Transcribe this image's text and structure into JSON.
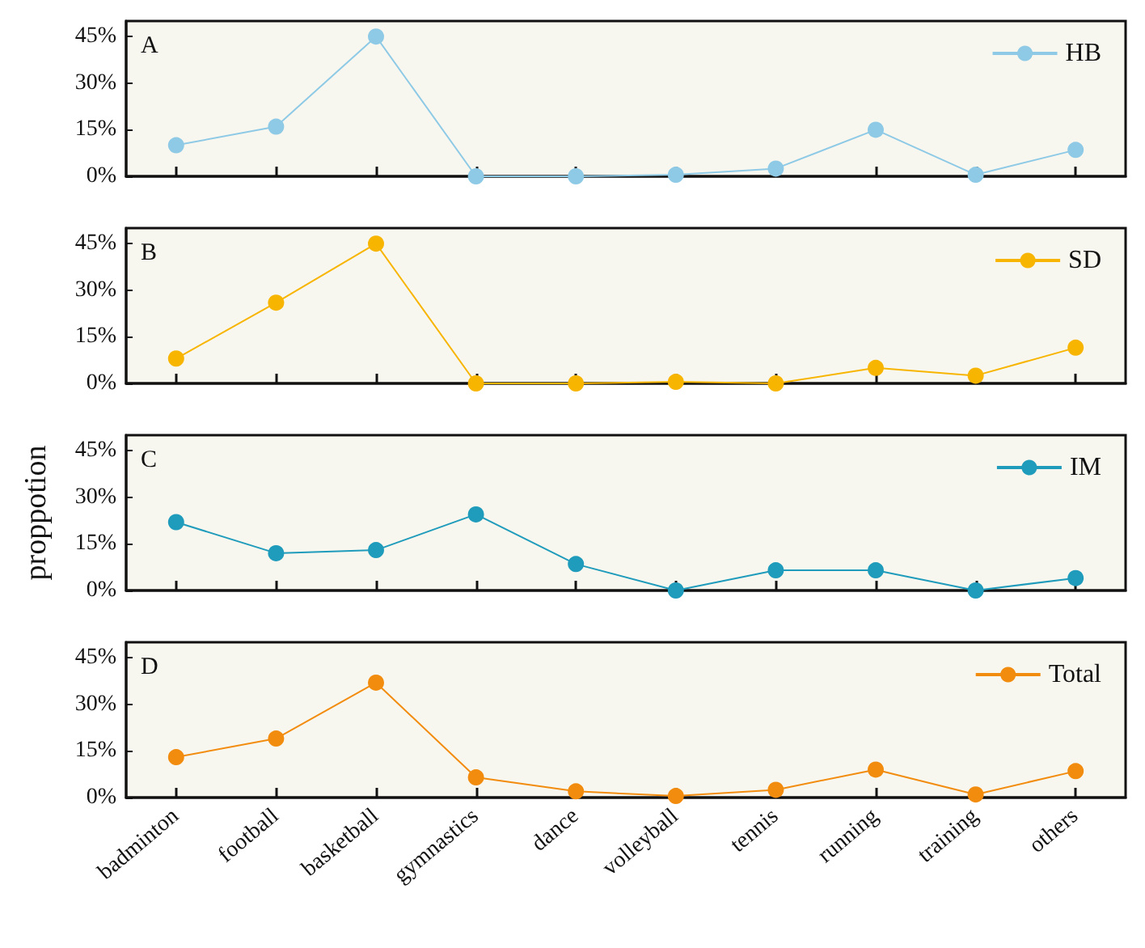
{
  "chart_data": [
    {
      "type": "line",
      "title": "A",
      "categories": [
        null,
        null,
        null,
        null,
        null,
        null,
        null,
        null,
        null,
        null
      ],
      "series": [
        {
          "name": "HB",
          "color": "#8ecae6",
          "values": [
            10,
            16,
            45,
            0,
            0,
            0.5,
            2.5,
            15,
            0.5,
            8.5
          ]
        }
      ],
      "ylim": [
        0,
        50
      ],
      "yticks": [
        {
          "value": 0,
          "label": "0%"
        },
        {
          "value": 15,
          "label": "15%"
        },
        {
          "value": 30,
          "label": "30%"
        },
        {
          "value": 45,
          "label": "45%"
        }
      ],
      "grid": false,
      "legend": "top right",
      "marker": "circle",
      "line_style": "solid",
      "tick_labels": "y"
    },
    {
      "type": "line",
      "title": "B",
      "categories": [
        null,
        null,
        null,
        null,
        null,
        null,
        null,
        null,
        null,
        null
      ],
      "series": [
        {
          "name": "SD",
          "color": "#f7b500",
          "values": [
            8,
            26,
            45,
            0,
            0,
            0.5,
            0,
            5,
            2.5,
            11.5
          ]
        }
      ],
      "ylim": [
        0,
        50
      ],
      "yticks": [
        {
          "value": 0,
          "label": "0%"
        },
        {
          "value": 15,
          "label": "15%"
        },
        {
          "value": 30,
          "label": "30%"
        },
        {
          "value": 45,
          "label": "45%"
        }
      ],
      "grid": false,
      "legend": "top right",
      "marker": "circle",
      "line_style": "solid",
      "tick_labels": "y"
    },
    {
      "type": "line",
      "title": "C",
      "ylabel": "proppotion",
      "categories": [
        null,
        null,
        null,
        null,
        null,
        null,
        null,
        null,
        null,
        null
      ],
      "series": [
        {
          "name": "IM",
          "color": "#1f9bbb",
          "values": [
            22,
            12,
            13,
            24.5,
            8.5,
            0,
            6.5,
            6.5,
            0,
            4
          ]
        }
      ],
      "ylim": [
        0,
        50
      ],
      "yticks": [
        {
          "value": 0,
          "label": "0%"
        },
        {
          "value": 15,
          "label": "15%"
        },
        {
          "value": 30,
          "label": "30%"
        },
        {
          "value": 45,
          "label": "45%"
        }
      ],
      "grid": false,
      "legend": "top right",
      "marker": "circle",
      "line_style": "solid",
      "tick_labels": "y"
    },
    {
      "type": "line",
      "title": "D",
      "categories": [
        "badminton",
        "football",
        "basketball",
        "gymnastics",
        "dance",
        "volleyball",
        "tennis",
        "running",
        "training",
        "others"
      ],
      "series": [
        {
          "name": "Total",
          "color": "#f28c0f",
          "values": [
            13,
            19,
            37,
            6.5,
            2,
            0.5,
            2.5,
            9,
            1,
            8.5
          ]
        }
      ],
      "ylim": [
        0,
        50
      ],
      "yticks": [
        {
          "value": 0,
          "label": "0%"
        },
        {
          "value": 15,
          "label": "15%"
        },
        {
          "value": 30,
          "label": "30%"
        },
        {
          "value": 45,
          "label": "45%"
        }
      ],
      "grid": false,
      "legend": "top right",
      "marker": "circle",
      "line_style": "solid"
    }
  ]
}
